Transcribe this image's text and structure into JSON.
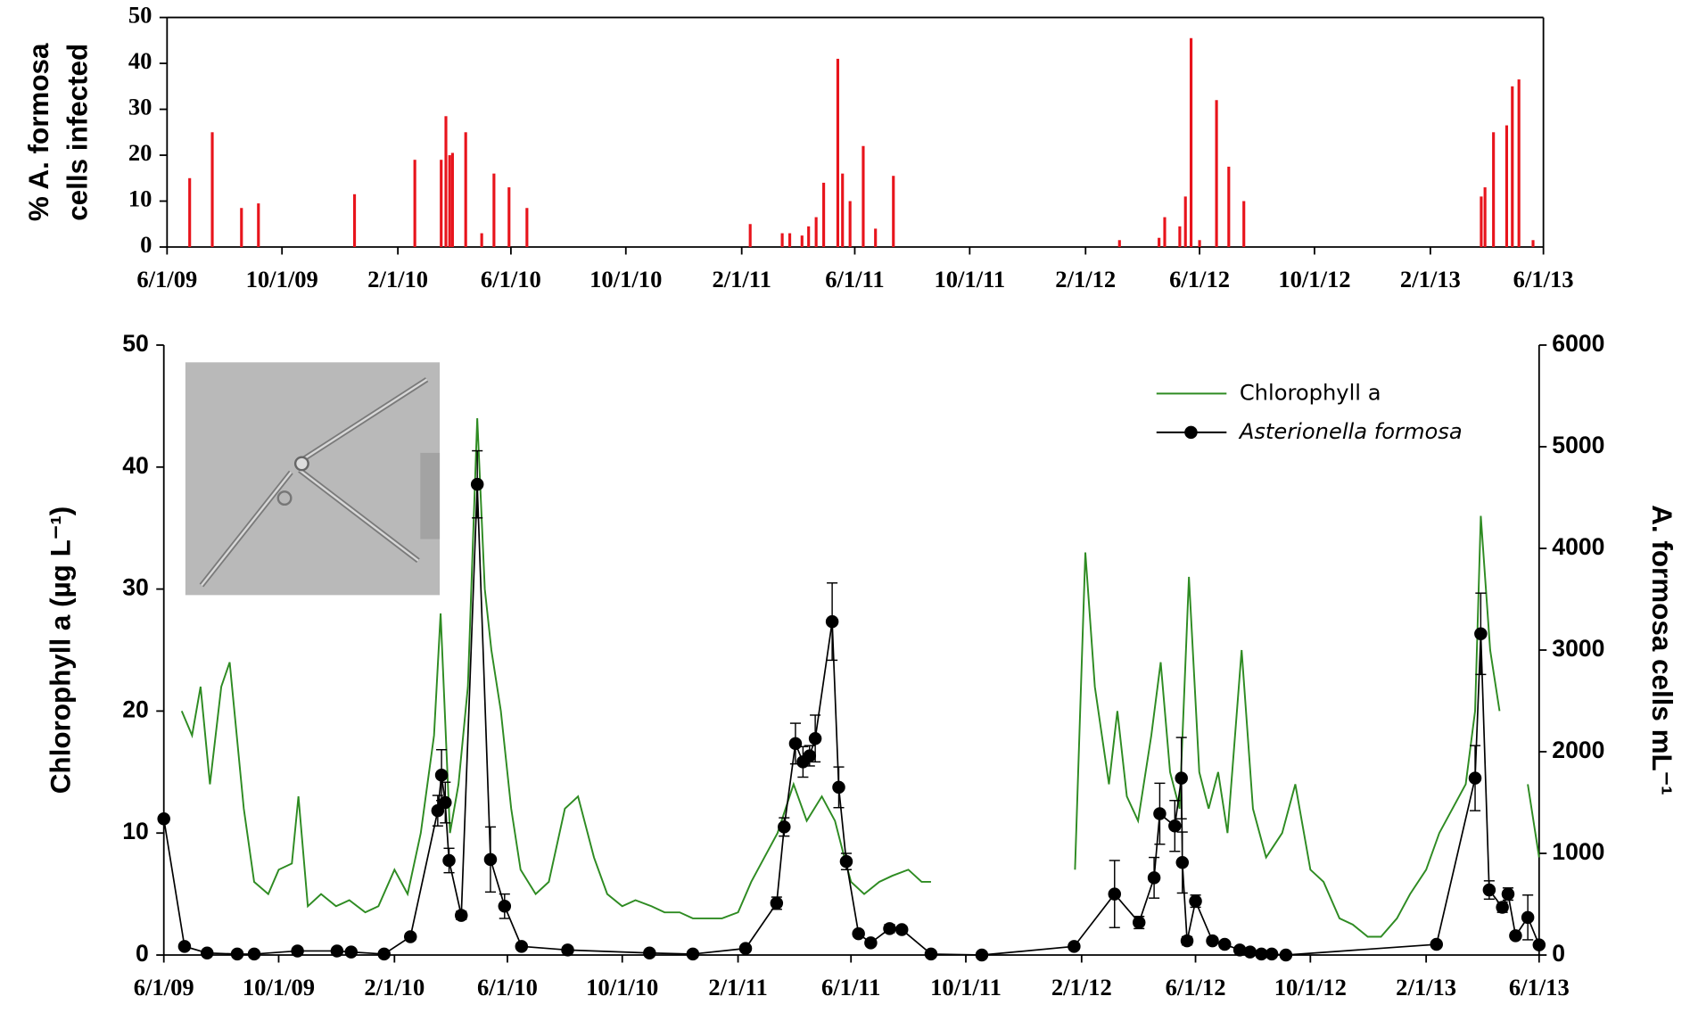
{
  "chart_data": [
    {
      "type": "bar",
      "ylabel": [
        "% A. formosa",
        "cells infected"
      ],
      "color": "#e8141c",
      "x": [
        "6/25/09",
        "7/19/09",
        "8/19/09",
        "9/6/09",
        "12/17/09",
        "2/19/10",
        "3/19/10",
        "3/24/10",
        "3/28/10",
        "3/31/10",
        "4/14/10",
        "5/1/10",
        "5/14/10",
        "5/30/10",
        "6/18/10",
        "2/10/11",
        "3/16/11",
        "3/24/11",
        "4/6/11",
        "4/13/11",
        "4/21/11",
        "4/29/11",
        "5/14/11",
        "5/19/11",
        "5/27/11",
        "6/10/11",
        "6/23/11",
        "7/12/11",
        "3/8/12",
        "4/19/12",
        "4/25/12",
        "5/11/12",
        "5/17/12",
        "5/23/12",
        "6/1/12",
        "6/19/12",
        "7/2/12",
        "7/18/12",
        "3/27/13",
        "3/31/13",
        "4/9/13",
        "4/23/13",
        "4/29/13",
        "5/6/13",
        "5/21/13"
      ],
      "values": [
        15,
        25,
        8.5,
        9.5,
        11.5,
        19,
        19,
        28.5,
        20,
        20.5,
        25,
        3,
        16,
        13,
        8.5,
        5,
        3,
        3,
        2.5,
        4.5,
        6.5,
        14,
        41,
        16,
        10,
        22,
        4,
        15.5,
        1.5,
        2,
        6.5,
        4.5,
        11,
        45.5,
        1.5,
        32,
        17.5,
        10,
        11,
        13,
        25,
        26.5,
        35,
        36.5,
        1.5
      ],
      "xlim": [
        "6/1/09",
        "6/1/13"
      ],
      "xticks": [
        "6/1/09",
        "10/1/09",
        "2/1/10",
        "6/1/10",
        "10/1/10",
        "2/1/11",
        "6/1/11",
        "10/1/11",
        "2/1/12",
        "6/1/12",
        "10/1/12",
        "2/1/13",
        "6/1/13"
      ],
      "ylim": [
        0,
        50
      ],
      "yticks": [
        0,
        10,
        20,
        30,
        40,
        50
      ]
    },
    {
      "type": "line",
      "ylabel": "Chlorophyll a (µg L⁻¹)",
      "y2label": "A. formosa cells mL⁻¹",
      "legend": "upper right",
      "xlim": [
        "6/1/09",
        "6/1/13"
      ],
      "xticks": [
        "6/1/09",
        "10/1/09",
        "2/1/10",
        "6/1/10",
        "10/1/10",
        "2/1/11",
        "6/1/11",
        "10/1/11",
        "2/1/12",
        "6/1/12",
        "10/1/12",
        "2/1/13",
        "6/1/13"
      ],
      "ylim": [
        0,
        50
      ],
      "yticks": [
        0,
        10,
        20,
        30,
        40,
        50
      ],
      "y2lim": [
        0,
        6000
      ],
      "y2ticks": [
        0,
        1000,
        2000,
        3000,
        4000,
        5000,
        6000
      ],
      "series": [
        {
          "name": "Chlorophyll a",
          "color": "#2e8b22",
          "x": [
            "6/20/09",
            "7/1/09",
            "7/10/09",
            "7/20/09",
            "8/1/09",
            "8/10/09",
            "8/25/09",
            "9/5/09",
            "9/20/09",
            "10/1/09",
            "10/15/09",
            "10/22/09",
            "11/1/09",
            "11/15/09",
            "12/1/09",
            "12/15/09",
            "1/1/10",
            "1/15/10",
            "2/1/10",
            "2/15/10",
            "3/1/10",
            "3/15/10",
            "3/22/10",
            "4/1/10",
            "4/10/10",
            "4/20/10",
            "4/30/10",
            "5/8/10",
            "5/15/10",
            "5/25/10",
            "6/5/10",
            "6/15/10",
            "7/1/10",
            "7/15/10",
            "8/1/10",
            "8/15/10",
            "9/1/10",
            "9/15/10",
            "10/1/10",
            "10/15/10",
            "11/1/10",
            "11/15/10",
            "12/1/10",
            "12/15/10",
            "1/1/11",
            "1/15/11",
            "2/1/11",
            "2/15/11",
            "3/1/11",
            "3/15/11",
            "4/1/11",
            "4/15/11",
            "5/1/11",
            "5/15/11",
            "5/25/11",
            "6/1/11",
            "6/15/11",
            "7/1/11",
            "7/15/11",
            "8/1/11",
            "8/15/11",
            "8/25/11",
            "11/1/11",
            "1/25/12",
            "2/5/12",
            "2/15/12",
            "3/1/12",
            "3/10/12",
            "3/20/12",
            "4/1/12",
            "4/15/12",
            "4/25/12",
            "5/5/12",
            "5/15/12",
            "5/25/12",
            "6/5/12",
            "6/15/12",
            "6/25/12",
            "7/5/12",
            "7/20/12",
            "8/1/12",
            "8/15/12",
            "9/1/12",
            "9/15/12",
            "10/1/12",
            "10/15/12",
            "11/1/12",
            "11/15/12",
            "12/1/12",
            "12/15/12",
            "1/1/13",
            "1/15/13",
            "2/1/13",
            "2/15/13",
            "3/1/13",
            "3/15/13",
            "3/25/13",
            "3/31/13",
            "4/10/13",
            "4/20/13",
            "5/5/13",
            "5/20/13",
            "6/1/13"
          ],
          "values": [
            20,
            18,
            22,
            14,
            22,
            24,
            12,
            6,
            5,
            7,
            7.5,
            13,
            4,
            5,
            4,
            4.5,
            3.5,
            4,
            7,
            5,
            10,
            18,
            28,
            10,
            14,
            22,
            44,
            30,
            25,
            20,
            12,
            7,
            5,
            6,
            12,
            13,
            8,
            5,
            4,
            4.5,
            4,
            3.5,
            3.5,
            3,
            3,
            3,
            3.5,
            6,
            8,
            10,
            14,
            11,
            13,
            11,
            8,
            6,
            5,
            6,
            6.5,
            7,
            6,
            6,
            null,
            7,
            33,
            22,
            14,
            20,
            13,
            11,
            18,
            24,
            15,
            12,
            31,
            15,
            12,
            15,
            10,
            25,
            12,
            8,
            10,
            14,
            7,
            6,
            3,
            2.5,
            1.5,
            1.5,
            3,
            5,
            7,
            10,
            12,
            14,
            20,
            36,
            25,
            20,
            null,
            14,
            8
          ]
        },
        {
          "name": "Asterionella formosa",
          "color": "#000000",
          "axis": "y2",
          "marker": "circle",
          "x": [
            "6/1/09",
            "6/23/09",
            "7/17/09",
            "8/18/09",
            "9/5/09",
            "10/21/09",
            "12/2/09",
            "12/17/09",
            "1/21/10",
            "2/18/10",
            "3/19/10",
            "3/23/10",
            "3/27/10",
            "3/31/10",
            "4/13/10",
            "4/30/10",
            "5/14/10",
            "5/29/10",
            "6/16/10",
            "8/4/10",
            "10/30/10",
            "12/15/10",
            "2/9/11",
            "3/14/11",
            "3/22/11",
            "4/3/11",
            "4/11/11",
            "4/18/11",
            "4/24/11",
            "5/12/11",
            "5/19/11",
            "5/27/11",
            "6/9/11",
            "6/22/11",
            "7/12/11",
            "7/25/11",
            "8/25/11",
            "10/18/11",
            "1/24/12",
            "3/7/12",
            "4/2/12",
            "4/18/12",
            "4/24/12",
            "5/10/12",
            "5/17/12",
            "5/18/12",
            "5/23/12",
            "6/1/12",
            "6/19/12",
            "7/2/12",
            "7/18/12",
            "7/29/12",
            "8/10/12",
            "8/21/12",
            "9/5/12",
            "2/12/13",
            "3/25/13",
            "3/31/13",
            "4/9/13",
            "4/23/13",
            "4/29/13",
            "5/7/13",
            "5/20/13",
            "6/1/13"
          ],
          "values": [
            1340,
            85,
            20,
            10,
            10,
            40,
            40,
            30,
            10,
            180,
            1420,
            1770,
            1500,
            930,
            390,
            4630,
            940,
            480,
            85,
            50,
            20,
            10,
            65,
            510,
            1260,
            2080,
            1900,
            1960,
            2130,
            3280,
            1650,
            920,
            210,
            120,
            260,
            250,
            10,
            0,
            85,
            600,
            320,
            760,
            1390,
            1270,
            1740,
            910,
            140,
            530,
            140,
            105,
            50,
            30,
            10,
            10,
            0,
            105,
            1740,
            3160,
            640,
            470,
            600,
            190,
            370,
            100
          ],
          "errors": [
            0,
            20,
            0,
            0,
            0,
            15,
            15,
            15,
            0,
            30,
            150,
            250,
            200,
            120,
            40,
            330,
            320,
            120,
            20,
            15,
            0,
            0,
            20,
            60,
            90,
            200,
            150,
            100,
            230,
            380,
            200,
            80,
            30,
            20,
            40,
            30,
            10,
            0,
            20,
            330,
            60,
            200,
            300,
            250,
            400,
            300,
            40,
            60,
            20,
            20,
            10,
            10,
            0,
            0,
            0,
            20,
            320,
            400,
            90,
            50,
            60,
            30,
            220,
            20
          ]
        }
      ]
    }
  ]
}
